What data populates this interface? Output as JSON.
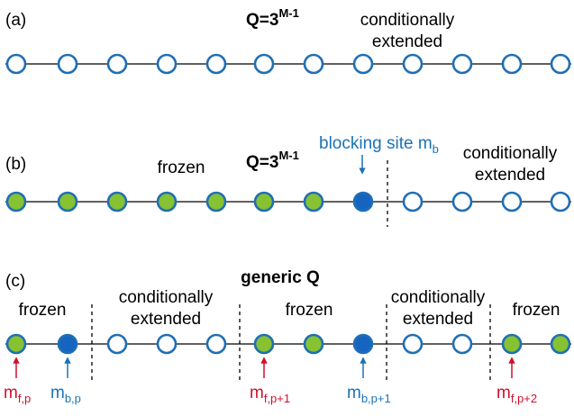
{
  "colors": {
    "node_stroke": "#1f6fb5",
    "node_open_fill": "#ffffff",
    "frozen_fill": "#86c232",
    "blocking_fill": "#1565c0",
    "blue_text": "#1a73b7",
    "red_text": "#d0102a"
  },
  "panel_a": {
    "tag": "(a)",
    "q_base": "Q=3",
    "q_exp": "M-1",
    "cond_line1": "conditionally",
    "cond_line2": "extended",
    "nodes": [
      "open",
      "open",
      "open",
      "open",
      "open",
      "open",
      "open",
      "open",
      "open",
      "open",
      "open",
      "open"
    ]
  },
  "panel_b": {
    "tag": "(b)",
    "q_base": "Q=3",
    "q_exp": "M-1",
    "frozen": "frozen",
    "blocking_label": "blocking site m",
    "blocking_sub": "b",
    "cond_line1": "conditionally",
    "cond_line2": "extended",
    "nodes": [
      "frozen",
      "frozen",
      "frozen",
      "frozen",
      "frozen",
      "frozen",
      "frozen",
      "blocking",
      "open",
      "open",
      "open",
      "open"
    ]
  },
  "panel_c": {
    "tag": "(c)",
    "title": "generic Q",
    "frozen_1": "frozen",
    "frozen_2": "frozen",
    "frozen_3": "frozen",
    "cond1_line1": "conditionally",
    "cond1_line2": "extended",
    "cond2_line1": "conditionally",
    "cond2_line2": "extended",
    "nodes": [
      "frozen",
      "blocking",
      "open",
      "open",
      "open",
      "frozen",
      "frozen",
      "blocking",
      "open",
      "open",
      "frozen",
      "frozen"
    ],
    "m_f_p": {
      "base": "m",
      "sub": "f,p"
    },
    "m_b_p": {
      "base": "m",
      "sub": "b,p"
    },
    "m_f_p1": {
      "base": "m",
      "sub": "f,p+1"
    },
    "m_b_p1": {
      "base": "m",
      "sub": "b,p+1"
    },
    "m_f_p2": {
      "base": "m",
      "sub": "f,p+2"
    }
  }
}
